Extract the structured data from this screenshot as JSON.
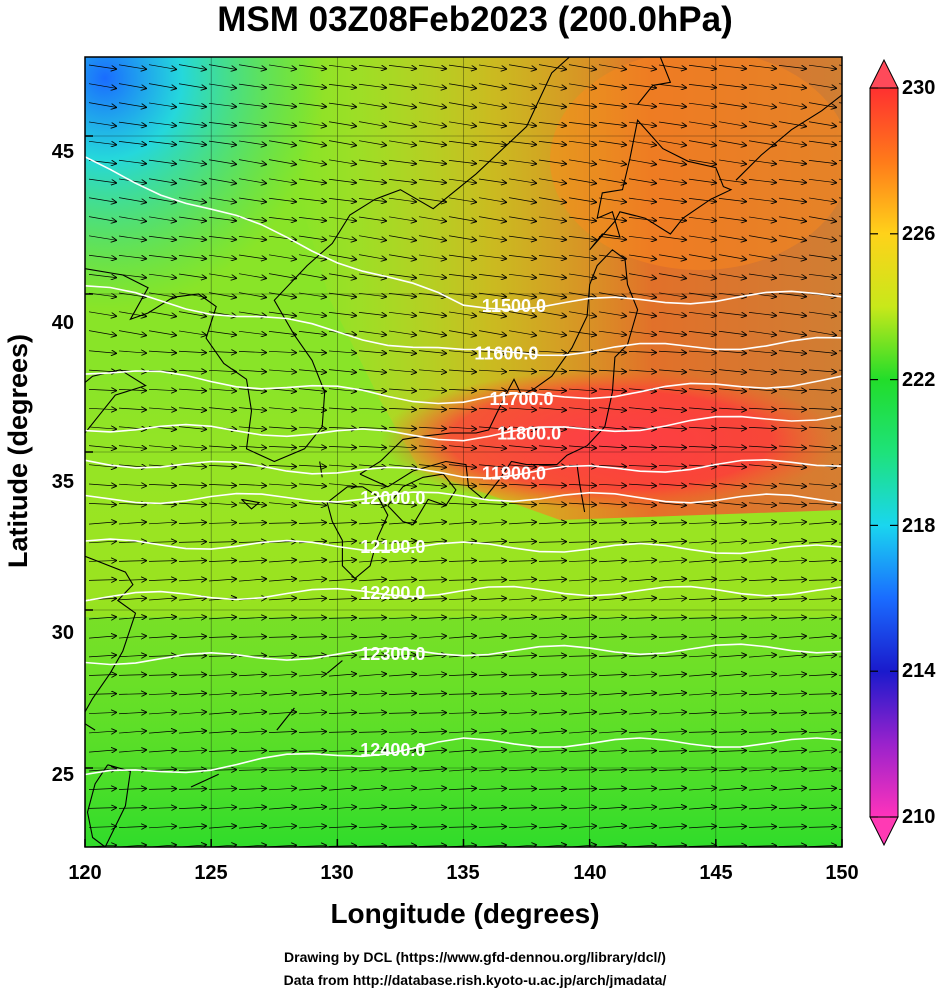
{
  "title": "MSM 03Z08Feb2023 (200.0hPa)",
  "x_axis": {
    "label": "Longitude (degrees)",
    "range": [
      120,
      150
    ],
    "ticks": [
      "120",
      "125",
      "130",
      "135",
      "140",
      "145",
      "150"
    ]
  },
  "y_axis": {
    "label": "Latitude  (degrees)",
    "range": [
      22.5,
      47.5
    ],
    "ticks": [
      "25",
      "30",
      "35",
      "40",
      "45"
    ]
  },
  "colorbar": {
    "range": [
      210,
      230
    ],
    "ticks": [
      "210",
      "214",
      "218",
      "222",
      "226",
      "230"
    ],
    "colors": [
      "#ff33bb",
      "#9a22cc",
      "#1a1acc",
      "#1a6cff",
      "#1ad6ef",
      "#1ee27a",
      "#22dd2a",
      "#c8e81a",
      "#ffd21a",
      "#ff7a1a",
      "#ff3030"
    ]
  },
  "contours": [
    {
      "label": "11500.0",
      "lat_west": 44.2,
      "lat_mid": 39.6,
      "lat_east": 40.0,
      "label_lon": 137.0
    },
    {
      "label": "11600.0",
      "lat_west": 40.2,
      "lat_mid": 38.1,
      "lat_east": 38.5,
      "label_lon": 136.7
    },
    {
      "label": "11700.0",
      "lat_west": 37.6,
      "lat_mid": 36.6,
      "lat_east": 37.3,
      "label_lon": 137.3
    },
    {
      "label": "11800.0",
      "lat_west": 35.8,
      "lat_mid": 35.5,
      "lat_east": 36.2,
      "label_lon": 137.6
    },
    {
      "label": "11900.0",
      "lat_west": 34.7,
      "lat_mid": 34.3,
      "lat_east": 34.7,
      "label_lon": 137.0
    },
    {
      "label": "12000.0",
      "lat_west": 33.5,
      "lat_mid": 33.6,
      "lat_east": 33.5,
      "label_lon": 132.2
    },
    {
      "label": "12100.0",
      "lat_west": 32.1,
      "lat_mid": 32.0,
      "lat_east": 31.9,
      "label_lon": 132.2
    },
    {
      "label": "12200.0",
      "lat_west": 30.4,
      "lat_mid": 30.6,
      "lat_east": 30.6,
      "label_lon": 132.2
    },
    {
      "label": "12300.0",
      "lat_west": 28.4,
      "lat_mid": 28.7,
      "lat_east": 28.8,
      "label_lon": 132.2
    },
    {
      "label": "12400.0",
      "lat_west": 24.7,
      "lat_mid": 25.8,
      "lat_east": 25.8,
      "label_lon": 132.2
    }
  ],
  "credits": [
    "Drawing by DCL (https://www.gfd-dennou.org/library/dcl/)",
    "Data from http://database.rish.kyoto-u.ac.jp/arch/jmadata/"
  ]
}
